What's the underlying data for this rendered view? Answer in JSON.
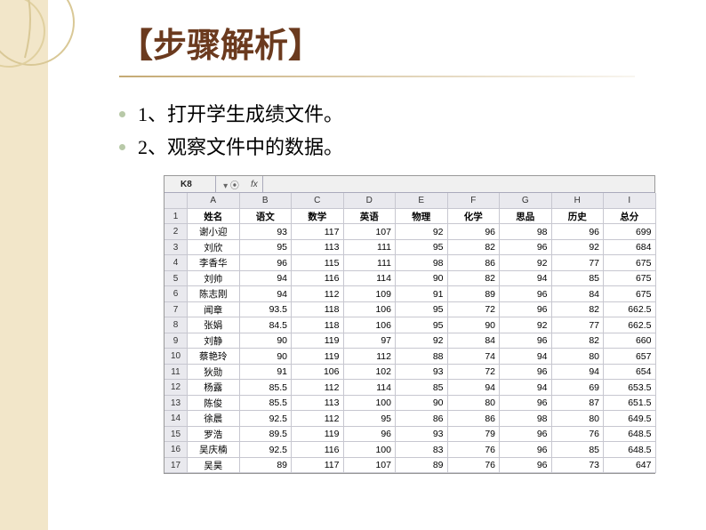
{
  "title": "【步骤解析】",
  "bullets": [
    "1、打开学生成绩文件。",
    "2、观察文件中的数据。"
  ],
  "excel": {
    "name_box": "K8",
    "fx": "fx",
    "col_letters": [
      "A",
      "B",
      "C",
      "D",
      "E",
      "F",
      "G",
      "H",
      "I"
    ],
    "headers": [
      "姓名",
      "语文",
      "数学",
      "英语",
      "物理",
      "化学",
      "思品",
      "历史",
      "总分"
    ],
    "rows": [
      [
        "谢小迎",
        "93",
        "117",
        "107",
        "92",
        "96",
        "98",
        "96",
        "699"
      ],
      [
        "刘欣",
        "95",
        "113",
        "111",
        "95",
        "82",
        "96",
        "92",
        "684"
      ],
      [
        "李香华",
        "96",
        "115",
        "111",
        "98",
        "86",
        "92",
        "77",
        "675"
      ],
      [
        "刘帅",
        "94",
        "116",
        "114",
        "90",
        "82",
        "94",
        "85",
        "675"
      ],
      [
        "陈志刚",
        "94",
        "112",
        "109",
        "91",
        "89",
        "96",
        "84",
        "675"
      ],
      [
        "闻章",
        "93.5",
        "118",
        "106",
        "95",
        "72",
        "96",
        "82",
        "662.5"
      ],
      [
        "张娟",
        "84.5",
        "118",
        "106",
        "95",
        "90",
        "92",
        "77",
        "662.5"
      ],
      [
        "刘静",
        "90",
        "119",
        "97",
        "92",
        "84",
        "96",
        "82",
        "660"
      ],
      [
        "蔡艳玲",
        "90",
        "119",
        "112",
        "88",
        "74",
        "94",
        "80",
        "657"
      ],
      [
        "狄勋",
        "91",
        "106",
        "102",
        "93",
        "72",
        "96",
        "94",
        "654"
      ],
      [
        "杨露",
        "85.5",
        "112",
        "114",
        "85",
        "94",
        "94",
        "69",
        "653.5"
      ],
      [
        "陈俊",
        "85.5",
        "113",
        "100",
        "90",
        "80",
        "96",
        "87",
        "651.5"
      ],
      [
        "徐晨",
        "92.5",
        "112",
        "95",
        "86",
        "86",
        "98",
        "80",
        "649.5"
      ],
      [
        "罗浩",
        "89.5",
        "119",
        "96",
        "93",
        "79",
        "96",
        "76",
        "648.5"
      ],
      [
        "吴庆楠",
        "92.5",
        "116",
        "100",
        "83",
        "76",
        "96",
        "85",
        "648.5"
      ],
      [
        "吴昊",
        "89",
        "117",
        "107",
        "89",
        "76",
        "96",
        "73",
        "647"
      ]
    ]
  },
  "colors": {
    "bg_deco": "#f2e6c9",
    "title_color": "#6b3a1e",
    "bullet_color": "#b8c9a8"
  }
}
